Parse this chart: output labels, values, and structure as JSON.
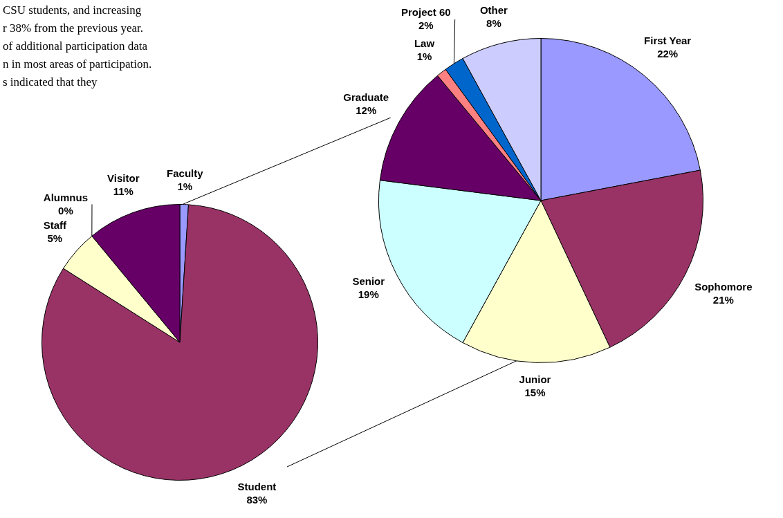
{
  "chart_data": [
    {
      "type": "pie",
      "categories": [
        "Faculty",
        "Student",
        "Staff",
        "Alumnus",
        "Visitor"
      ],
      "values": [
        1,
        83,
        5,
        0,
        11
      ],
      "value_labels": [
        "1%",
        "83%",
        "5%",
        "0%",
        "11%"
      ],
      "colors": [
        "#9999ff",
        "#993366",
        "#ffffcc",
        "#ccffff",
        "#660066"
      ],
      "legend": false,
      "annotations": [
        "CSU students, and increasing",
        "r 38% from the previous year.",
        "of additional participation data",
        "n in most areas of participation.",
        "s indicated that they"
      ]
    },
    {
      "type": "pie",
      "categories": [
        "First Year",
        "Sophomore",
        "Junior",
        "Senior",
        "Graduate",
        "Law",
        "Project 60",
        "Other"
      ],
      "values": [
        22,
        21,
        15,
        19,
        12,
        1,
        2,
        8
      ],
      "value_labels": [
        "22%",
        "21%",
        "15%",
        "19%",
        "12%",
        "1%",
        "2%",
        "8%"
      ],
      "colors": [
        "#9999ff",
        "#993366",
        "#ffffcc",
        "#ccffff",
        "#660066",
        "#ff8080",
        "#0066cc",
        "#ccccff"
      ],
      "legend": false
    }
  ]
}
